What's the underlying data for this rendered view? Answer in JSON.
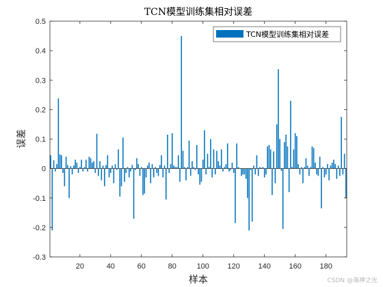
{
  "chart_data": {
    "type": "bar",
    "title": "TCN模型训练集相对误差",
    "xlabel": "样本",
    "ylabel": "误差",
    "legend": [
      "TCN模型训练集相对误差"
    ],
    "legend_position": "top-right",
    "bar_color": "#0072BD",
    "xlim": [
      0.5,
      193.5
    ],
    "ylim": [
      -0.3,
      0.5
    ],
    "xticks": [
      20,
      40,
      60,
      80,
      100,
      120,
      140,
      160,
      180
    ],
    "yticks": [
      -0.3,
      -0.2,
      -0.1,
      0,
      0.1,
      0.2,
      0.3,
      0.4,
      0.5
    ],
    "grid": false,
    "x": [
      1,
      2,
      3,
      4,
      5,
      6,
      7,
      8,
      9,
      10,
      11,
      12,
      13,
      14,
      15,
      16,
      17,
      18,
      19,
      20,
      21,
      22,
      23,
      24,
      25,
      26,
      27,
      28,
      29,
      30,
      31,
      32,
      33,
      34,
      35,
      36,
      37,
      38,
      39,
      40,
      41,
      42,
      43,
      44,
      45,
      46,
      47,
      48,
      49,
      50,
      51,
      52,
      53,
      54,
      55,
      56,
      57,
      58,
      59,
      60,
      61,
      62,
      63,
      64,
      65,
      66,
      67,
      68,
      69,
      70,
      71,
      72,
      73,
      74,
      75,
      76,
      77,
      78,
      79,
      80,
      81,
      82,
      83,
      84,
      85,
      86,
      87,
      88,
      89,
      90,
      91,
      92,
      93,
      94,
      95,
      96,
      97,
      98,
      99,
      100,
      101,
      102,
      103,
      104,
      105,
      106,
      107,
      108,
      109,
      110,
      111,
      112,
      113,
      114,
      115,
      116,
      117,
      118,
      119,
      120,
      121,
      122,
      123,
      124,
      125,
      126,
      127,
      128,
      129,
      130,
      131,
      132,
      133,
      134,
      135,
      136,
      137,
      138,
      139,
      140,
      141,
      142,
      143,
      144,
      145,
      146,
      147,
      148,
      149,
      150,
      151,
      152,
      153,
      154,
      155,
      156,
      157,
      158,
      159,
      160,
      161,
      162,
      163,
      164,
      165,
      166,
      167,
      168,
      169,
      170,
      171,
      172,
      173,
      174,
      175,
      176,
      177,
      178,
      179,
      180,
      181,
      182,
      183,
      184,
      185,
      186,
      187,
      188,
      189,
      190,
      191,
      192,
      193
    ],
    "values": [
      0.045,
      -0.21,
      0.028,
      -0.01,
      0.015,
      0.238,
      0.048,
      0.045,
      -0.015,
      -0.06,
      0.04,
      0.012,
      -0.1,
      0.008,
      -0.02,
      0.01,
      0.03,
      0.02,
      -0.015,
      0.005,
      0.03,
      -0.01,
      0.005,
      0.03,
      -0.01,
      0.04,
      0.035,
      0.02,
      0.025,
      -0.015,
      0.118,
      -0.025,
      0.025,
      -0.04,
      0.01,
      -0.06,
      0.012,
      0.045,
      -0.03,
      -0.015,
      0.01,
      -0.05,
      0.015,
      -0.005,
      0.065,
      -0.095,
      -0.06,
      0.105,
      -0.045,
      -0.015,
      0.005,
      -0.03,
      -0.01,
      0.012,
      -0.17,
      -0.005,
      0.035,
      0.015,
      -0.025,
      0.005,
      -0.09,
      -0.085,
      -0.03,
      0.01,
      0.02,
      -0.05,
      0.015,
      -0.03,
      0.005,
      -0.015,
      -0.025,
      0.012,
      0.045,
      -0.03,
      0.01,
      -0.105,
      0.115,
      -0.015,
      0.015,
      0.12,
      0.01,
      0.005,
      0.005,
      0.045,
      -0.045,
      0.45,
      0.06,
      0.005,
      -0.04,
      0.005,
      0.095,
      -0.025,
      0.025,
      0.005,
      -0.005,
      0.08,
      -0.02,
      -0.055,
      -0.045,
      0.03,
      0.13,
      -0.02,
      0.05,
      0.005,
      0.1,
      -0.03,
      0.065,
      -0.02,
      0.06,
      0.025,
      0.01,
      0.065,
      -0.01,
      0.005,
      0.015,
      0.085,
      -0.01,
      -0.005,
      0.02,
      -0.015,
      -0.185,
      0.085,
      0.005,
      0.002,
      -0.025,
      -0.02,
      -0.02,
      -0.035,
      -0.1,
      -0.21,
      -0.005,
      -0.18,
      0.01,
      -0.02,
      0.045,
      -0.025,
      0.005,
      0.002,
      0.005,
      -0.03,
      -0.02,
      0.075,
      0.08,
      0.065,
      -0.09,
      0.058,
      -0.05,
      0.15,
      0.337,
      0.1,
      -0.008,
      -0.205,
      0.09,
      0.115,
      0.075,
      -0.08,
      0.23,
      0.005,
      0.065,
      0.12,
      0.11,
      0.015,
      -0.02,
      0.005,
      -0.05,
      0.005,
      0.035,
      0.01,
      -0.025,
      0.005,
      0.075,
      0.07,
      0.02,
      -0.02,
      -0.025,
      0.04,
      -0.135,
      0.005,
      -0.03,
      -0.02,
      0.015,
      -0.04,
      0.01,
      0.02,
      0.03,
      0.015,
      -0.035,
      0.01,
      -0.025,
      0.175,
      -0.02,
      0.05,
      -0.1
    ]
  },
  "watermark": "CSDN @海神之光"
}
